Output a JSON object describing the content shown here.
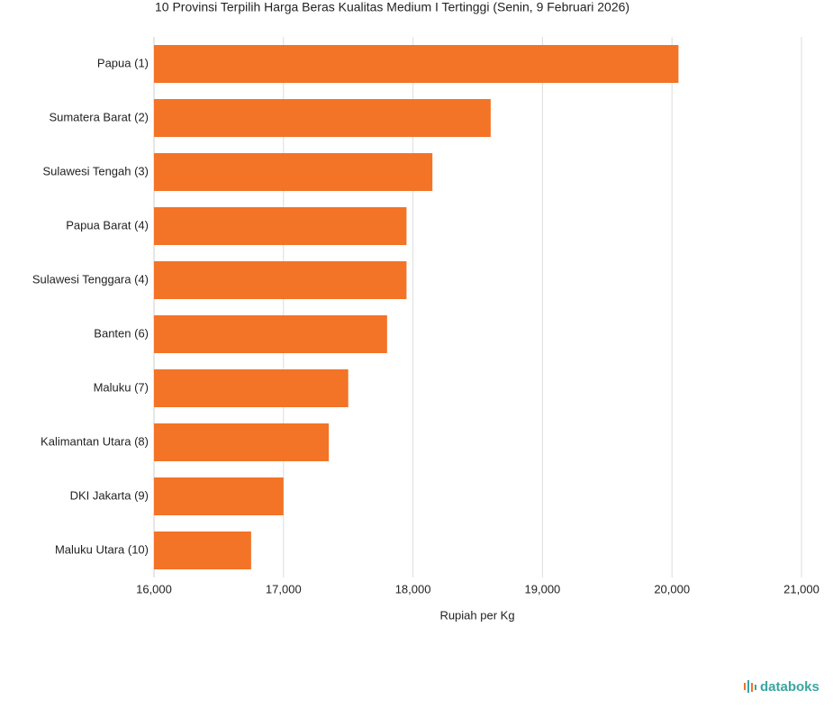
{
  "chart_data": {
    "type": "bar",
    "orientation": "horizontal",
    "title": "10 Provinsi Terpilih Harga Beras Kualitas Medium I Tertinggi (Senin, 9 Februari 2026)",
    "x_label": "Rupiah per Kg",
    "categories": [
      "Papua (1)",
      "Sumatera Barat (2)",
      "Sulawesi Tengah (3)",
      "Papua Barat (4)",
      "Sulawesi Tenggara (4)",
      "Banten (6)",
      "Maluku (7)",
      "Kalimantan Utara (8)",
      "DKI Jakarta (9)",
      "Maluku Utara (10)"
    ],
    "values": [
      20050,
      18600,
      18150,
      17950,
      17950,
      17800,
      17500,
      17350,
      17000,
      16750
    ],
    "color": "#f37327",
    "xlim": [
      16000,
      21000
    ],
    "xticks": [
      {
        "value": 16000,
        "label": "16,000"
      },
      {
        "value": 17000,
        "label": "17,000"
      },
      {
        "value": 18000,
        "label": "18,000"
      },
      {
        "value": 19000,
        "label": "19,000"
      },
      {
        "value": 20000,
        "label": "20,000"
      },
      {
        "value": 21000,
        "label": "21,000"
      }
    ],
    "grid": true
  },
  "brand": "databoks"
}
